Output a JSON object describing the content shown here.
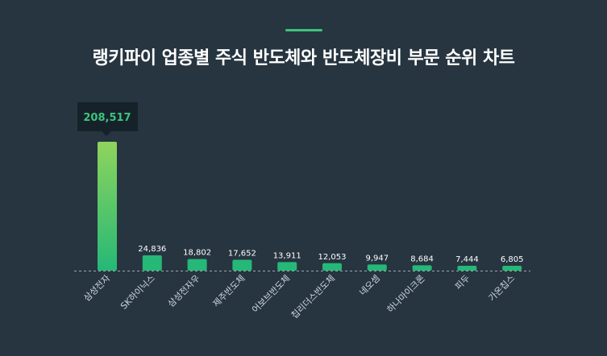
{
  "header": {
    "title": "랭키파이 업종별 주식 반도체와 반도체장비 부문 순위 차트"
  },
  "colors": {
    "background": "#263540",
    "accent": "#3ec37e",
    "bar_top": "#8fd45c",
    "bar_bottom": "#25b877",
    "tooltip_bg": "#16222a"
  },
  "tooltip": {
    "value": "208,517"
  },
  "chart_data": {
    "type": "bar",
    "title": "랭키파이 업종별 주식 반도체와 반도체장비 부문 순위 차트",
    "xlabel": "",
    "ylabel": "",
    "categories": [
      "삼성전자",
      "SK하이닉스",
      "삼성전자우",
      "제주반도체",
      "어보브반도체",
      "칩리더스반도체",
      "네오셈",
      "하나마이크론",
      "피두",
      "가온칩스"
    ],
    "values": [
      208517,
      24836,
      18802,
      17652,
      13911,
      12053,
      9947,
      8684,
      7444,
      6805
    ],
    "value_labels": [
      "208,517",
      "24,836",
      "18,802",
      "17,652",
      "13,911",
      "12,053",
      "9,947",
      "8,684",
      "7,444",
      "6,805"
    ],
    "ylim": [
      0,
      208517
    ],
    "grid": false,
    "legend": "none"
  }
}
